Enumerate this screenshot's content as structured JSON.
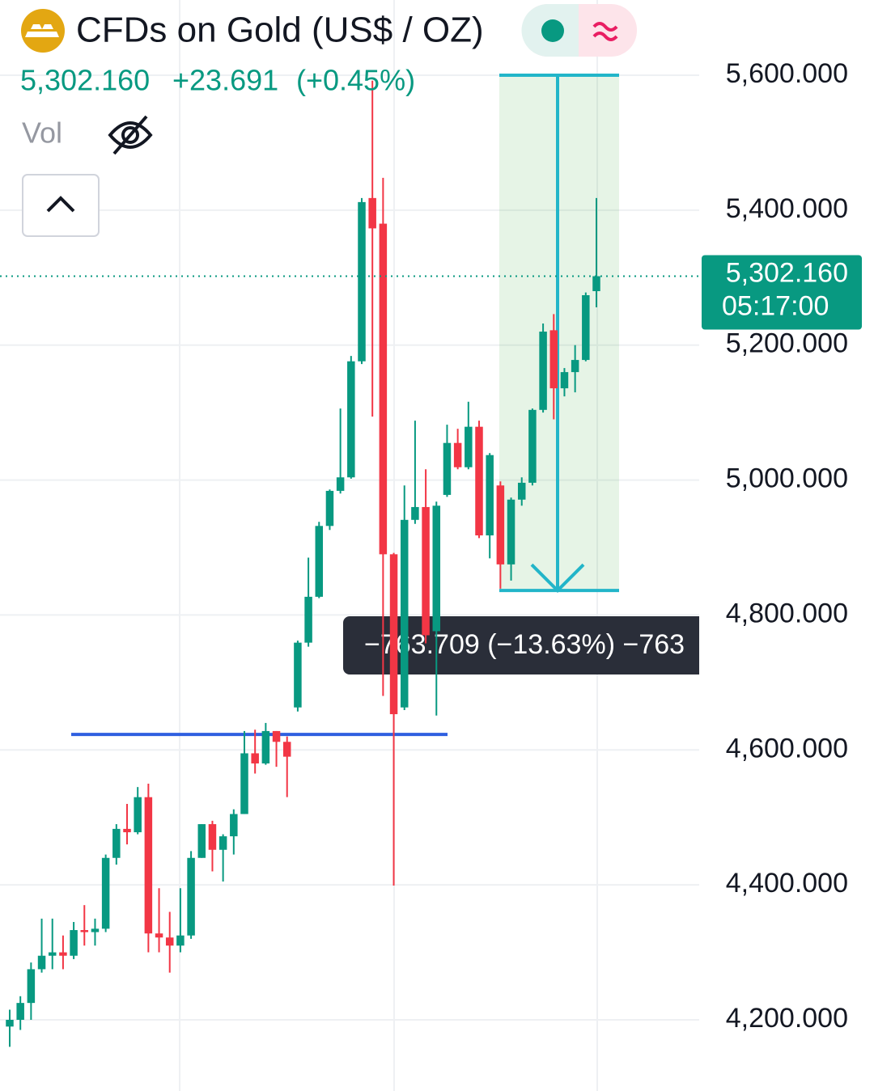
{
  "chart_data": {
    "type": "candlestick",
    "title": "CFDs on Gold (US$ / OZ)",
    "last_price": "5,302.160",
    "change": "+23.691",
    "change_pct": "(+0.45%)",
    "volume_label": "Vol",
    "price_tag": {
      "value": 5302.16,
      "label": "5,302.160",
      "countdown": "05:17:00"
    },
    "ylim": [
      4094.5,
      5711.5
    ],
    "yticks": [
      {
        "value": 4200,
        "label": "4,200.000"
      },
      {
        "value": 4400,
        "label": "4,400.000"
      },
      {
        "value": 4600,
        "label": "4,600.000"
      },
      {
        "value": 4800,
        "label": "4,800.000"
      },
      {
        "value": 5000,
        "label": "5,000.000"
      },
      {
        "value": 5200,
        "label": "5,200.000"
      },
      {
        "value": 5400,
        "label": "5,400.000"
      },
      {
        "value": 5600,
        "label": "5,600.000"
      }
    ],
    "grid": true,
    "up_color": "#089981",
    "down_color": "#f23645",
    "open": [
      4190,
      4200,
      4225,
      4275,
      4295,
      4300,
      4295,
      4333,
      4330,
      4335,
      4440,
      4483,
      4478,
      4530,
      4328,
      4322,
      4310,
      4325,
      4440,
      4490,
      4452,
      4472,
      4505,
      4595,
      4580,
      4628,
      4612,
      4663,
      4759,
      4827,
      4932,
      4984,
      5004,
      5176,
      5418,
      5380,
      4890,
      4663,
      4941,
      4960,
      4776,
      4978,
      5055,
      5019,
      5079,
      4918,
      4992,
      4875,
      4971,
      4996,
      5104,
      5222,
      5136,
      5160,
      5178,
      5280
    ],
    "high": [
      4215,
      4235,
      4285,
      4350,
      4350,
      4325,
      4345,
      4370,
      4350,
      4445,
      4490,
      4520,
      4545,
      4550,
      4395,
      4360,
      4395,
      4450,
      4490,
      4495,
      4475,
      4512,
      4628,
      4630,
      4640,
      4628,
      4620,
      4762,
      4885,
      4938,
      4986,
      5106,
      5184,
      5418,
      5592,
      5448,
      4892,
      4992,
      5088,
      5016,
      4968,
      5082,
      5076,
      5116,
      5088,
      5040,
      4998,
      4974,
      5004,
      5106,
      5232,
      5246,
      5166,
      5200,
      5278,
      5418
    ],
    "low": [
      4160,
      4185,
      4200,
      4270,
      4275,
      4275,
      4290,
      4310,
      4310,
      4330,
      4430,
      4460,
      4475,
      4300,
      4300,
      4270,
      4300,
      4320,
      4440,
      4420,
      4405,
      4445,
      4505,
      4565,
      4578,
      4575,
      4530,
      4657,
      4753,
      4825,
      4926,
      4980,
      5002,
      5172,
      5094,
      4680,
      4399,
      4659,
      4935,
      4758,
      4651,
      4975,
      5016,
      5016,
      4914,
      4884,
      4839,
      4851,
      4962,
      4992,
      5100,
      5090,
      5124,
      5130,
      5176,
      5256
    ],
    "close": [
      4200,
      4225,
      4275,
      4295,
      4300,
      4295,
      4333,
      4330,
      4335,
      4440,
      4483,
      4478,
      4530,
      4328,
      4322,
      4310,
      4325,
      4440,
      4490,
      4452,
      4472,
      4505,
      4595,
      4580,
      4628,
      4612,
      4590,
      4759,
      4827,
      4932,
      4984,
      5004,
      5176,
      5412,
      5373,
      4890,
      4653,
      4941,
      4960,
      4770,
      4962,
      5055,
      5019,
      5079,
      4918,
      5037,
      4875,
      4971,
      4996,
      5104,
      5220,
      5136,
      5160,
      5178,
      5274,
      5302.16
    ],
    "hline": {
      "value": 4623,
      "color": "#2f5fe0"
    },
    "measure": {
      "from": 5600,
      "to": 4836.291,
      "label": "−763.709 (−13.63%) −763",
      "color": "#22b5c9"
    }
  }
}
